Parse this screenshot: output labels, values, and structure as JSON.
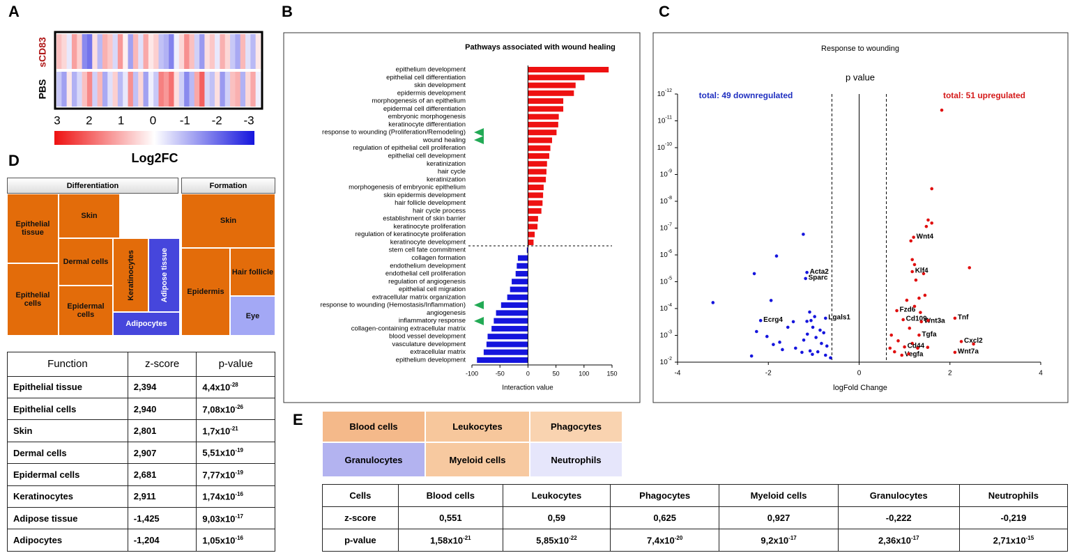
{
  "panel_labels": [
    "A",
    "B",
    "C",
    "D",
    "E"
  ],
  "heatmap": {
    "rows": [
      "sCD83",
      "PBS"
    ],
    "values": [
      [
        0.8,
        0.5,
        -0.3,
        1.2,
        0.6,
        -1.5,
        -1.8,
        0.4,
        -0.9,
        1.0,
        0.7,
        -0.5,
        1.3,
        0.2,
        -1.2,
        0.9,
        -0.4,
        1.1,
        0.3,
        0.6,
        -0.8,
        -1.0,
        -1.6,
        -0.2,
        0.5,
        1.4,
        0.8,
        -0.6,
        -1.3,
        0.4,
        0.7,
        -0.3,
        1.0,
        0.5,
        -0.7,
        -1.1,
        0.9,
        -0.4,
        -0.9,
        0.3
      ],
      [
        -0.7,
        -1.2,
        0.3,
        -1.0,
        -0.5,
        0.8,
        1.5,
        -0.6,
        0.9,
        -1.1,
        -0.4,
        0.6,
        -0.9,
        -0.3,
        1.4,
        -0.8,
        0.5,
        -1.2,
        -0.2,
        -0.7,
        1.6,
        1.3,
        1.8,
        0.4,
        -0.6,
        -1.5,
        -0.9,
        1.1,
        2.0,
        -0.5,
        -0.8,
        0.4,
        -1.3,
        -0.6,
        0.8,
        1.0,
        -1.0,
        0.5,
        1.1,
        -0.2
      ]
    ],
    "clim": [
      3,
      -3
    ],
    "ticks": [
      3,
      2,
      1,
      0,
      -1,
      -2,
      -3
    ],
    "label": "Log2FC",
    "high_color": "#ee1111",
    "low_color": "#1515dd"
  },
  "chart_data": [
    {
      "type": "bar",
      "orientation": "horizontal",
      "title": "Pathways associated with wound healing",
      "xlabel": "Interaction value",
      "categories": [
        "epithelium development",
        "epithelial cell differentiation",
        "skin development",
        "epidermis development",
        "morphogenesis of an epithelium",
        "epidermal cell differentiation",
        "embryonic morphogenesis",
        "keratinocyte differentiation",
        "response to wounding (Proliferation/Remodeling)",
        "wound healing",
        "regulation of epithelial cell proliferation",
        "epithelial cell development",
        "keratinization",
        "hair cycle",
        "keratinization",
        "morphogenesis of embryonic epithelium",
        "skin epidermis development",
        "hair follicle development",
        "hair cycle process",
        "establishment of skin barrier",
        "keratinocyte proliferation",
        "regulation of keratinocyte proliferation",
        "keratinocyte development",
        "stem cell fate commitment",
        "collagen formation",
        "endothelium development",
        "endothelial cell proliferation",
        "regulation of angiogenesis",
        "epithelial cell migration",
        "extracellular matrix organization",
        "response to wounding (Hemostasis/Inflammation)",
        "angiogenesis",
        "inflammatory response",
        "collagen-containing extracellular matrix",
        "blood vessel development",
        "vasculature development",
        "extracellular matrix",
        "epithelium development"
      ],
      "values": [
        144,
        101,
        85,
        82,
        63,
        63,
        55,
        54,
        51,
        43,
        40,
        38,
        34,
        33,
        32,
        28,
        27,
        26,
        24,
        18,
        17,
        12,
        10,
        -2,
        -18,
        -20,
        -22,
        -29,
        -32,
        -37,
        -48,
        -57,
        -61,
        -65,
        -72,
        -74,
        -79,
        -91
      ],
      "positive_color": "#ee1111",
      "negative_color": "#1515dd",
      "xlim": [
        -100,
        150
      ],
      "xticks": [
        -100,
        -50,
        0,
        50,
        100,
        150
      ]
    },
    {
      "type": "scatter",
      "title": "Response to wounding",
      "ylabel": "p value",
      "xlabel": "logFold Change",
      "annotations": [
        {
          "text": "total: 49 downregulated",
          "color": "#1f2fc0"
        },
        {
          "text": "total: 51 upregulated",
          "color": "#d41a1a"
        }
      ],
      "thresholds": [
        -0.6,
        0.6
      ],
      "xlim": [
        -4,
        4
      ],
      "xticks": [
        -4,
        -2,
        0,
        2,
        4
      ],
      "ylog": true,
      "ylim": [
        0.01,
        1e-12
      ],
      "yticks": [
        {
          "value": 1e-12,
          "label": "10",
          "sup": "-12"
        },
        {
          "value": 1e-11,
          "label": "10",
          "sup": "-11"
        },
        {
          "value": 1e-10,
          "label": "10",
          "sup": "-10"
        },
        {
          "value": 1e-09,
          "label": "10",
          "sup": "-9"
        },
        {
          "value": 1e-08,
          "label": "10",
          "sup": "-8"
        },
        {
          "value": 1e-07,
          "label": "10",
          "sup": "-7"
        },
        {
          "value": 1e-06,
          "label": "10",
          "sup": "-6"
        },
        {
          "value": 1e-05,
          "label": "10",
          "sup": "-5"
        },
        {
          "value": 0.0001,
          "label": "10",
          "sup": "-4"
        },
        {
          "value": 0.001,
          "label": "10",
          "sup": "-3"
        },
        {
          "value": 0.01,
          "label": "10",
          "sup": "-2"
        }
      ],
      "series": [
        {
          "color": "#1515dd",
          "x": [
            -3.22,
            -2.31,
            -1.82,
            -1.23,
            -1.15,
            -1.18,
            -1.94,
            -2.17,
            -0.74,
            -2.37,
            -2.26,
            -2.03,
            -1.75,
            -1.57,
            -1.4,
            -1.09,
            -1.06,
            -1.02,
            -1.14,
            -0.95,
            -1.22,
            -0.83,
            -1.08,
            -0.91,
            -0.74,
            -0.63,
            -1.03,
            -1.26,
            -1.69,
            -1.89,
            -0.86,
            -1.15,
            -0.98,
            -0.78,
            -1.45,
            -0.71
          ],
          "values": [
            6e-05,
            5e-06,
            1.1e-06,
            1.7e-07,
            4.5e-06,
            7.6e-06,
            5e-05,
            0.00028,
            0.00023,
            0.0059,
            0.00072,
            0.0011,
            0.0018,
            0.0005,
            0.003,
            0.000135,
            0.00028,
            0.0005,
            0.0009,
            0.0012,
            0.0015,
            0.002,
            0.0038,
            0.0041,
            0.0055,
            0.0069,
            0.0051,
            0.0043,
            0.0034,
            0.0022,
            0.00064,
            0.0003,
            0.0002,
            0.0008,
            0.00031,
            0.0025
          ],
          "labels": [
            null,
            null,
            null,
            null,
            "Acta2",
            "Sparc",
            null,
            "Ecrg4",
            "Lgals1",
            null,
            null,
            null,
            null,
            null,
            null,
            null,
            null,
            null,
            null,
            null,
            null,
            null,
            null,
            null,
            null,
            null,
            null,
            null,
            null,
            null,
            null,
            null,
            null,
            null,
            null,
            null
          ]
        },
        {
          "color": "#e01010",
          "x": [
            1.82,
            1.6,
            1.52,
            1.6,
            1.48,
            1.2,
            1.14,
            2.43,
            1.17,
            1.22,
            1.42,
            1.17,
            1.25,
            1.45,
            1.32,
            1.05,
            0.83,
            1.22,
            1.35,
            0.97,
            1.37,
            2.11,
            1.52,
            0.71,
            1.32,
            1.11,
            2.25,
            2.52,
            0.86,
            1.17,
            1.0,
            1.51,
            1.29,
            2.11,
            0.94,
            0.78,
            1.09,
            0.68
          ],
          "values": [
            4e-12,
            3.4e-09,
            5e-08,
            6.5e-08,
            8.7e-08,
            2.2e-07,
            3e-07,
            3e-06,
            1.5e-06,
            2.3e-06,
            5e-06,
            4.2e-06,
            8.7e-06,
            3.2e-05,
            4.1e-05,
            4.9e-05,
            0.00012,
            8.3e-05,
            0.00014,
            0.00026,
            0.00031,
            0.00023,
            0.00028,
            0.00098,
            0.00098,
            0.00054,
            0.0017,
            0.0021,
            0.0016,
            0.002,
            0.0027,
            0.0028,
            0.003,
            0.0043,
            0.0055,
            0.0041,
            0.0049,
            0.003
          ],
          "labels": [
            null,
            null,
            null,
            null,
            null,
            "Wnt4",
            null,
            null,
            null,
            null,
            null,
            "Klf4",
            null,
            null,
            null,
            null,
            "Fzd6",
            null,
            null,
            "Cd109",
            "Wnt3a",
            "Tnf",
            null,
            null,
            "Tgfa",
            null,
            "Cxcl2",
            null,
            null,
            null,
            "Cd44",
            null,
            null,
            "Wnt7a",
            "Vegfa",
            null,
            null,
            null
          ]
        }
      ]
    }
  ],
  "treemap_d": {
    "groups": [
      "Differentiation",
      "Formation"
    ],
    "cells": [
      "Epithelial tissue",
      "Skin",
      "Epithelial cells",
      "Dermal cells",
      "Keratinocytes",
      "Adipose tissue",
      "Epidermal cells",
      "Adipocytes",
      "Skin",
      "Epidermis",
      "Hair follicle",
      "Eye"
    ]
  },
  "table_d": {
    "header": [
      "Function",
      "z-score",
      "p-value"
    ],
    "rows": [
      [
        "Epithelial tissue",
        "2,394",
        {
          "base": "4,4x10",
          "exp": "-28"
        }
      ],
      [
        "Epithelial cells",
        "2,940",
        {
          "base": "7,08x10",
          "exp": "-26"
        }
      ],
      [
        "Skin",
        "2,801",
        {
          "base": "1,7x10",
          "exp": "-21"
        }
      ],
      [
        "Dermal cells",
        "2,907",
        {
          "base": "5,51x10",
          "exp": "-19"
        }
      ],
      [
        "Epidermal cells",
        "2,681",
        {
          "base": "7,77x10",
          "exp": "-19"
        }
      ],
      [
        "Keratinocytes",
        "2,911",
        {
          "base": "1,74x10",
          "exp": "-16"
        }
      ],
      [
        "Adipose tissue",
        "-1,425",
        {
          "base": "9,03x10",
          "exp": "-17"
        }
      ],
      [
        "Adipocytes",
        "-1,204",
        {
          "base": "1,05x10",
          "exp": "-16"
        }
      ]
    ]
  },
  "treemap_e": {
    "cells": [
      "Blood cells",
      "Leukocytes",
      "Phagocytes",
      "Granulocytes",
      "Myeloid cells",
      "Neutrophils"
    ]
  },
  "table_e": {
    "header": [
      "Cells",
      "Blood cells",
      "Leukocytes",
      "Phagocytes",
      "Myeloid cells",
      "Granulocytes",
      "Neutrophils"
    ],
    "rows": [
      [
        "z-score",
        "0,551",
        "0,59",
        "0,625",
        "0,927",
        "-0,222",
        "-0,219"
      ],
      [
        "p-value",
        {
          "base": "1,58x10",
          "exp": "-21"
        },
        {
          "base": "5,85x10",
          "exp": "-22"
        },
        {
          "base": "7,4x10",
          "exp": "-20"
        },
        {
          "base": "9,2x10",
          "exp": "-17"
        },
        {
          "base": "2,36x10",
          "exp": "-17"
        },
        {
          "base": "2,71x10",
          "exp": "-15"
        }
      ]
    ]
  }
}
